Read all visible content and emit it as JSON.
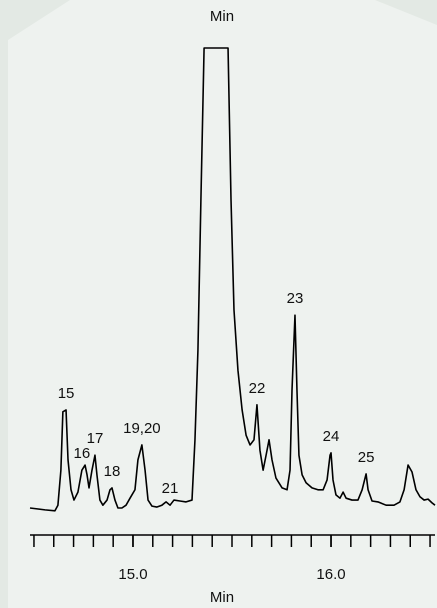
{
  "chart_data": {
    "type": "line",
    "title": "Min",
    "xlabel": "Min",
    "x": [
      14.48,
      14.556,
      14.606,
      14.621,
      14.636,
      14.646,
      14.662,
      14.672,
      14.687,
      14.702,
      14.722,
      14.742,
      14.758,
      14.768,
      14.778,
      14.793,
      14.808,
      14.818,
      14.833,
      14.848,
      14.869,
      14.884,
      14.894,
      14.909,
      14.924,
      14.944,
      14.965,
      14.985,
      15.01,
      15.025,
      15.045,
      15.061,
      15.076,
      15.096,
      15.121,
      15.146,
      15.167,
      15.187,
      15.207,
      15.237,
      15.268,
      15.298,
      15.313,
      15.328,
      15.343,
      15.359,
      15.48,
      15.495,
      15.51,
      15.53,
      15.551,
      15.571,
      15.591,
      15.611,
      15.626,
      15.641,
      15.657,
      15.672,
      15.687,
      15.702,
      15.722,
      15.753,
      15.778,
      15.793,
      15.803,
      15.818,
      15.828,
      15.838,
      15.854,
      15.874,
      15.904,
      15.934,
      15.96,
      15.98,
      15.995,
      16,
      16.01,
      16.025,
      16.045,
      16.061,
      16.076,
      16.106,
      16.136,
      16.157,
      16.177,
      16.187,
      16.207,
      16.237,
      16.278,
      16.318,
      16.348,
      16.369,
      16.389,
      16.409,
      16.429,
      16.449,
      16.47,
      16.49,
      16.51,
      16.525
    ],
    "series": [
      {
        "color": "#000000",
        "values": [
          1.5,
          1.1,
          0.9,
          2.1,
          9.6,
          22.1,
          22.5,
          11.8,
          5.4,
          3.2,
          4.9,
          9.6,
          10.7,
          8.6,
          5.8,
          9.6,
          12.8,
          8.6,
          3.2,
          2.1,
          3.2,
          5.4,
          5.8,
          3.2,
          1.5,
          1.5,
          2.1,
          3.6,
          5.4,
          11.8,
          15.0,
          9.6,
          3.2,
          1.9,
          1.7,
          2.1,
          2.8,
          2.1,
          3.2,
          3.0,
          2.8,
          3.2,
          16.1,
          35.3,
          67.5,
          100,
          100,
          67.5,
          43.9,
          31.0,
          22.5,
          17.1,
          15.0,
          16.1,
          23.6,
          13.9,
          9.6,
          12.8,
          16.1,
          11.8,
          7.9,
          5.8,
          5.4,
          9.6,
          26.8,
          42.8,
          26.8,
          12.8,
          8.6,
          6.9,
          5.8,
          5.4,
          5.4,
          7.5,
          12.8,
          13.3,
          7.5,
          4.3,
          3.6,
          4.9,
          3.6,
          3.2,
          3.2,
          5.4,
          8.8,
          5.4,
          3.0,
          2.8,
          2.1,
          2.1,
          2.8,
          5.4,
          10.7,
          9.2,
          5.4,
          3.9,
          3.2,
          3.4,
          2.6,
          2.1
        ]
      }
    ],
    "peaks": [
      {
        "label": "15",
        "x": 14.662
      },
      {
        "label": "16",
        "x": 14.742
      },
      {
        "label": "17",
        "x": 14.808
      },
      {
        "label": "18",
        "x": 14.894
      },
      {
        "label": "19,20",
        "x": 15.045
      },
      {
        "label": "21",
        "x": 15.187
      },
      {
        "label": "22",
        "x": 15.626
      },
      {
        "label": "23",
        "x": 15.818
      },
      {
        "label": "24",
        "x": 16
      },
      {
        "label": "25",
        "x": 16.177
      }
    ],
    "xlim": [
      14.48,
      16.525
    ],
    "ylim": [
      0,
      100
    ],
    "xticks": [
      {
        "value": 15,
        "label": "15.0"
      },
      {
        "value": 16,
        "label": "16.0"
      }
    ],
    "minor_xticks": [
      14.5,
      14.6,
      14.7,
      14.8,
      14.9,
      15,
      15.1,
      15.2,
      15.3,
      15.4,
      15.5,
      15.6,
      15.7,
      15.8,
      15.9,
      16,
      16.1,
      16.2,
      16.3,
      16.4,
      16.5
    ]
  }
}
